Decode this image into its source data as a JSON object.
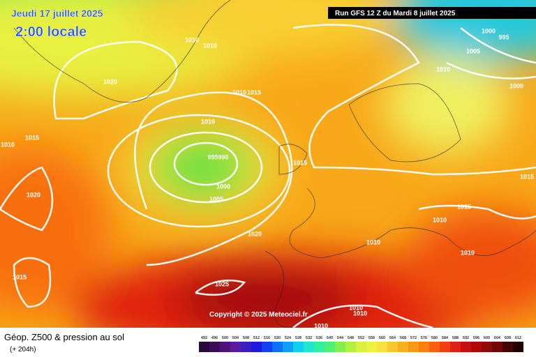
{
  "header": {
    "valid_date": "Jeudi 17 juillet 2025",
    "local_time": "2:00 locale",
    "run": "Run GFS 12 Z du Mardi 8 juillet 2025"
  },
  "footer": {
    "title": "Géop. Z500 & pression au sol",
    "lead": "(+ 204h)",
    "copyright": "Copyright © 2025 Meteociel.fr"
  },
  "isobar_labels": [
    1010,
    1010,
    1020,
    1015,
    1015,
    1010,
    995,
    990,
    1000,
    1005,
    1015,
    1010,
    1015,
    1020,
    1015,
    1020,
    1025,
    1010,
    1010,
    1010,
    1010,
    1010,
    1010,
    1015,
    1015,
    1000,
    1010,
    1005,
    1000,
    995
  ],
  "scale": {
    "values": [
      492,
      496,
      500,
      504,
      508,
      512,
      516,
      520,
      524,
      528,
      532,
      536,
      540,
      544,
      548,
      552,
      556,
      560,
      564,
      568,
      572,
      576,
      580,
      584,
      588,
      592,
      596,
      600,
      604,
      608,
      612
    ],
    "colors": [
      "#2a0a3a",
      "#3c0e5a",
      "#50127a",
      "#5a1aa0",
      "#3a1ec0",
      "#1a1ae0",
      "#1040f0",
      "#1070f8",
      "#10a0f8",
      "#10d0f0",
      "#20e8d0",
      "#30f0a0",
      "#50f070",
      "#80f050",
      "#b0f040",
      "#d8f040",
      "#f0f040",
      "#f8e040",
      "#f8c830",
      "#f8b020",
      "#f89818",
      "#f88010",
      "#f86010",
      "#f04010",
      "#e02010",
      "#c81010",
      "#b00808",
      "#900808",
      "#700808",
      "#480404",
      "#200000"
    ]
  }
}
